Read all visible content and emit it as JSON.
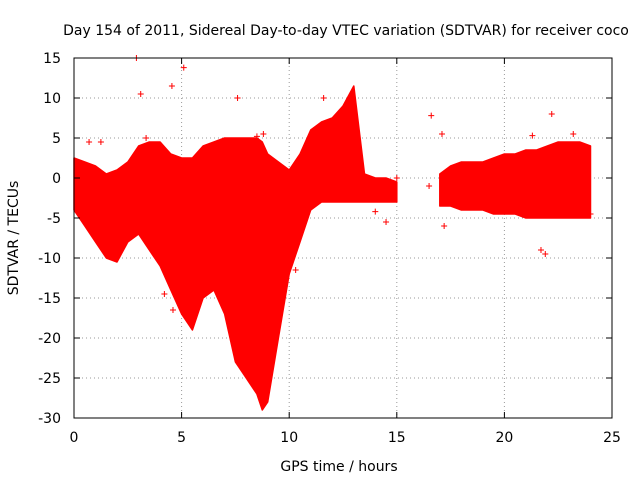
{
  "chart_data": {
    "type": "scatter",
    "title": "Day 154 of 2011, Sidereal Day-to-day VTEC variation (SDTVAR) for receiver coco",
    "xlabel": "GPS time / hours",
    "ylabel": "SDTVAR / TECUs",
    "xlim": [
      0,
      25
    ],
    "ylim": [
      -30,
      15
    ],
    "xticks": [
      0,
      5,
      10,
      15,
      20,
      25
    ],
    "yticks": [
      15,
      10,
      5,
      0,
      -5,
      -10,
      -15,
      -20,
      -25,
      -30
    ],
    "grid": true,
    "marker": "+",
    "series_color": "#ff0000",
    "bands": [
      {
        "name": "segment-1",
        "x": [
          0.0,
          0.5,
          1.0,
          1.5,
          2.0,
          2.5,
          3.0,
          3.5,
          4.0,
          4.5,
          5.0,
          5.5,
          6.0,
          6.5,
          7.0,
          7.5,
          8.0,
          8.5,
          8.75,
          9.0,
          9.5,
          10.0,
          10.5,
          11.0,
          11.5,
          12.0,
          12.5,
          13.0,
          13.5,
          14.0,
          14.5,
          15.0
        ],
        "upper": [
          2.5,
          2.0,
          1.5,
          0.5,
          1.0,
          2.0,
          4.0,
          4.5,
          4.5,
          3.0,
          2.5,
          2.5,
          4.0,
          4.5,
          5.0,
          5.0,
          5.0,
          5.0,
          4.5,
          3.0,
          2.0,
          1.0,
          3.0,
          6.0,
          7.0,
          7.5,
          9.0,
          11.5,
          0.5,
          0.0,
          0.0,
          -0.5
        ],
        "lower": [
          -4.0,
          -6.0,
          -8.0,
          -10.0,
          -10.5,
          -8.0,
          -7.0,
          -9.0,
          -11.0,
          -14.0,
          -17.0,
          -19.0,
          -15.0,
          -14.0,
          -17.0,
          -23.0,
          -25.0,
          -27.0,
          -29.0,
          -28.0,
          -20.0,
          -12.0,
          -8.0,
          -4.0,
          -3.0,
          -3.0,
          -3.0,
          -3.0,
          -3.0,
          -3.0,
          -3.0,
          -3.0
        ]
      },
      {
        "name": "segment-2",
        "x": [
          17.0,
          17.5,
          18.0,
          18.5,
          19.0,
          19.5,
          20.0,
          20.5,
          21.0,
          21.5,
          22.0,
          22.5,
          23.0,
          23.5,
          24.0
        ],
        "upper": [
          0.5,
          1.5,
          2.0,
          2.0,
          2.0,
          2.5,
          3.0,
          3.0,
          3.5,
          3.5,
          4.0,
          4.5,
          4.5,
          4.5,
          4.0
        ],
        "lower": [
          -3.5,
          -3.5,
          -4.0,
          -4.0,
          -4.0,
          -4.5,
          -4.5,
          -4.5,
          -5.0,
          -5.0,
          -5.0,
          -5.0,
          -5.0,
          -5.0,
          -5.0
        ]
      }
    ],
    "outliers": [
      [
        2.9,
        15.0
      ],
      [
        4.55,
        11.5
      ],
      [
        5.1,
        13.8
      ],
      [
        4.2,
        -14.5
      ],
      [
        4.6,
        -16.5
      ],
      [
        1.25,
        4.5
      ],
      [
        0.7,
        4.5
      ],
      [
        3.35,
        5.0
      ],
      [
        7.6,
        10.0
      ],
      [
        8.5,
        5.2
      ],
      [
        11.6,
        10.0
      ],
      [
        14.5,
        -5.5
      ],
      [
        14.0,
        -4.2
      ],
      [
        15.0,
        0.0
      ],
      [
        16.6,
        7.8
      ],
      [
        16.5,
        -1.0
      ],
      [
        17.1,
        5.5
      ],
      [
        17.2,
        -6.0
      ],
      [
        21.3,
        5.3
      ],
      [
        21.7,
        -9.0
      ],
      [
        21.9,
        -9.5
      ],
      [
        22.2,
        8.0
      ],
      [
        23.2,
        5.5
      ],
      [
        24.0,
        -4.5
      ],
      [
        10.3,
        -11.5
      ],
      [
        12.3,
        -1.0
      ],
      [
        3.1,
        10.5
      ],
      [
        8.8,
        5.5
      ]
    ]
  }
}
